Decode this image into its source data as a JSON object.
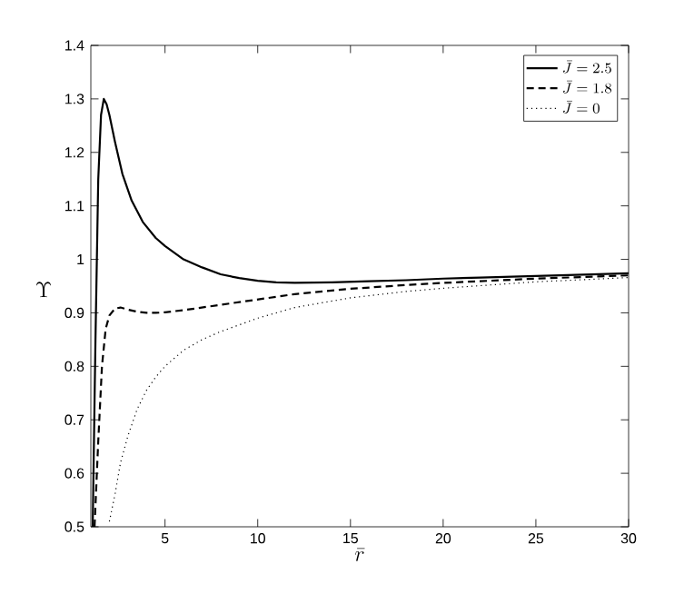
{
  "chart_data": {
    "type": "line",
    "xlabel": "\\bar{r}",
    "ylabel": "\\Upsilon",
    "xlim": [
      1,
      30
    ],
    "ylim": [
      0.5,
      1.4
    ],
    "xticks": [
      5,
      10,
      15,
      20,
      25,
      30
    ],
    "yticks": [
      0.5,
      0.6,
      0.7,
      0.8,
      0.9,
      1,
      1.1,
      1.2,
      1.3,
      1.4
    ],
    "legend": "top right",
    "grid": false,
    "series": [
      {
        "name": "\\bar{J} = 2.5",
        "color": "#000000",
        "line_style": "solid",
        "x": [
          1.1,
          1.25,
          1.4,
          1.55,
          1.7,
          1.85,
          2.0,
          2.3,
          2.7,
          3.2,
          3.8,
          4.5,
          5.0,
          6.0,
          7.0,
          8.0,
          9.0,
          10.0,
          11.0,
          12.0,
          14.0,
          16.0,
          18.0,
          20.0,
          22.0,
          25.0,
          28.0,
          30.0
        ],
        "values": [
          0.5,
          0.85,
          1.15,
          1.27,
          1.3,
          1.29,
          1.27,
          1.22,
          1.16,
          1.11,
          1.07,
          1.04,
          1.025,
          1.0,
          0.985,
          0.972,
          0.965,
          0.96,
          0.957,
          0.956,
          0.957,
          0.959,
          0.961,
          0.964,
          0.966,
          0.969,
          0.972,
          0.974
        ]
      },
      {
        "name": "\\bar{J} = 1.8",
        "color": "#000000",
        "line_style": "dashed",
        "x": [
          1.2,
          1.4,
          1.6,
          1.8,
          2.0,
          2.3,
          2.6,
          3.0,
          3.5,
          4.0,
          4.5,
          5.0,
          6.0,
          7.0,
          8.0,
          10.0,
          12.0,
          15.0,
          18.0,
          20.0,
          25.0,
          30.0
        ],
        "values": [
          0.5,
          0.66,
          0.8,
          0.87,
          0.895,
          0.908,
          0.91,
          0.906,
          0.902,
          0.9,
          0.9,
          0.901,
          0.905,
          0.91,
          0.915,
          0.925,
          0.935,
          0.945,
          0.952,
          0.956,
          0.964,
          0.97
        ]
      },
      {
        "name": "\\bar{J} = 0",
        "color": "#000000",
        "line_style": "dotted",
        "x": [
          2.0,
          2.3,
          2.6,
          3.0,
          3.5,
          4.0,
          4.5,
          5.0,
          6.0,
          7.0,
          8.0,
          10.0,
          12.0,
          15.0,
          18.0,
          20.0,
          25.0,
          30.0
        ],
        "values": [
          0.51,
          0.56,
          0.62,
          0.67,
          0.72,
          0.755,
          0.78,
          0.8,
          0.83,
          0.85,
          0.865,
          0.89,
          0.91,
          0.928,
          0.94,
          0.946,
          0.958,
          0.966
        ]
      }
    ]
  }
}
